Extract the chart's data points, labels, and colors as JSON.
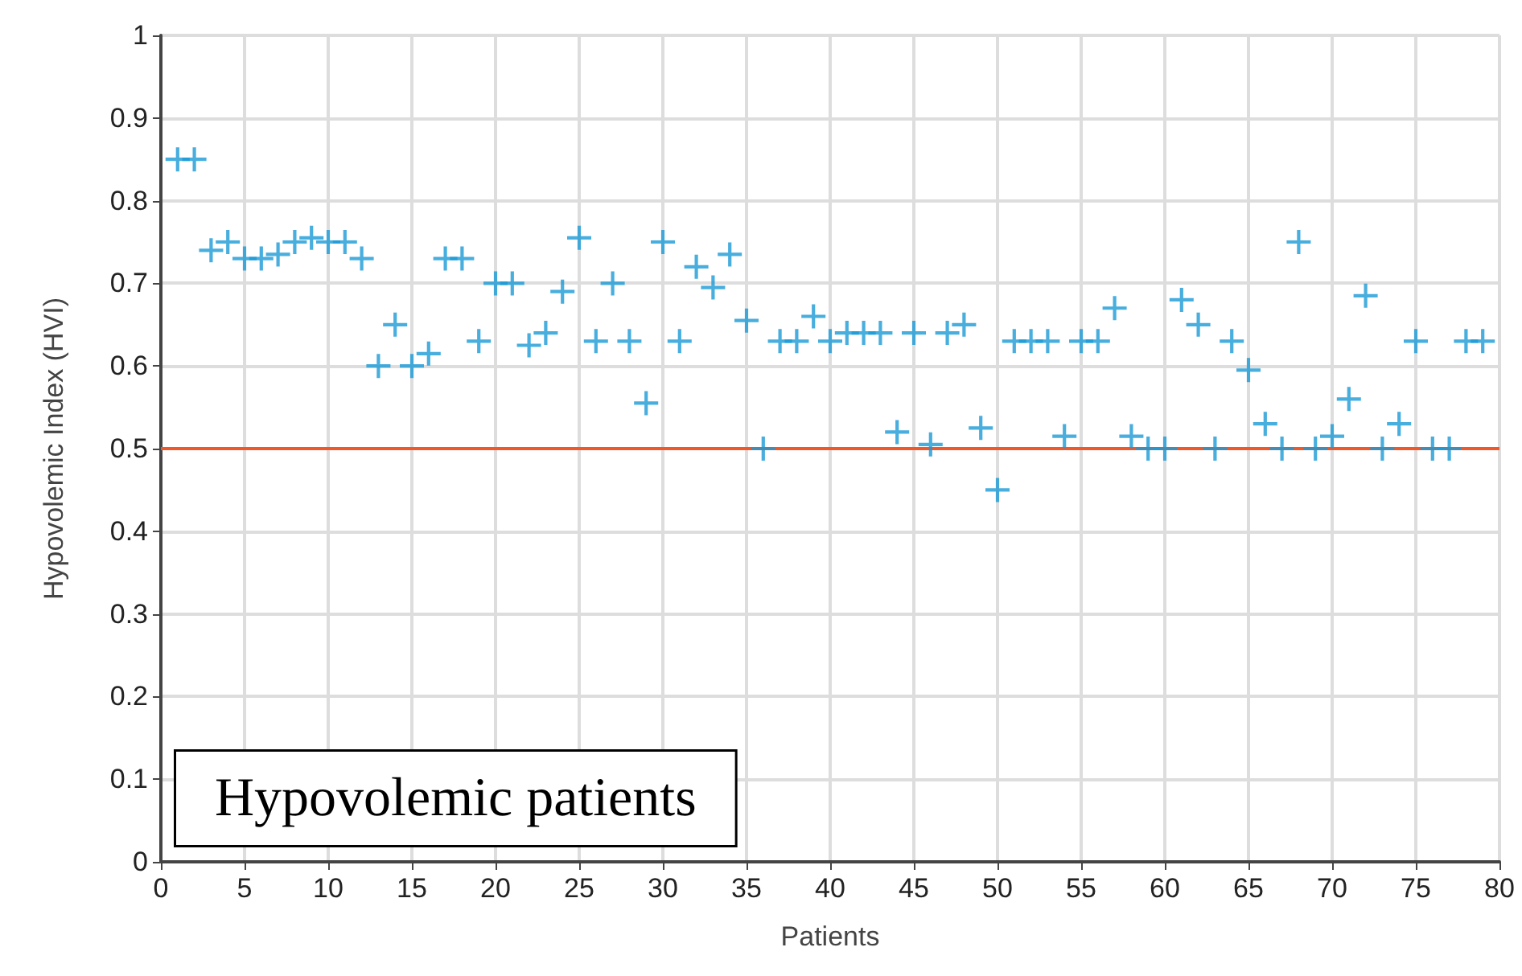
{
  "chart_data": {
    "type": "scatter",
    "xlabel": "Patients",
    "ylabel": "Hypovolemic Index (HVI)",
    "x": [
      1,
      2,
      3,
      4,
      5,
      6,
      7,
      8,
      9,
      10,
      11,
      12,
      13,
      14,
      15,
      16,
      17,
      18,
      19,
      20,
      21,
      22,
      23,
      24,
      25,
      26,
      27,
      28,
      29,
      30,
      31,
      32,
      33,
      34,
      35,
      36,
      37,
      38,
      39,
      40,
      41,
      42,
      43,
      44,
      45,
      46,
      47,
      48,
      49,
      50,
      51,
      52,
      53,
      54,
      55,
      56,
      57,
      58,
      59,
      60,
      61,
      62,
      63,
      64,
      65,
      66,
      67,
      68,
      69,
      70,
      71,
      72,
      73,
      74,
      75,
      76,
      77,
      78,
      79
    ],
    "values": [
      0.85,
      0.85,
      0.74,
      0.75,
      0.73,
      0.73,
      0.735,
      0.75,
      0.755,
      0.75,
      0.75,
      0.73,
      0.6,
      0.65,
      0.6,
      0.615,
      0.73,
      0.73,
      0.63,
      0.7,
      0.7,
      0.625,
      0.64,
      0.69,
      0.755,
      0.63,
      0.7,
      0.63,
      0.555,
      0.75,
      0.63,
      0.72,
      0.695,
      0.735,
      0.655,
      0.5,
      0.63,
      0.63,
      0.66,
      0.63,
      0.64,
      0.64,
      0.64,
      0.52,
      0.64,
      0.505,
      0.64,
      0.65,
      0.525,
      0.45,
      0.63,
      0.63,
      0.63,
      0.515,
      0.63,
      0.63,
      0.67,
      0.515,
      0.5,
      0.5,
      0.68,
      0.65,
      0.5,
      0.63,
      0.595,
      0.53,
      0.5,
      0.75,
      0.5,
      0.515,
      0.56,
      0.685,
      0.5,
      0.53,
      0.63,
      0.5,
      0.5,
      0.63,
      0.63
    ],
    "color": "#1a9ad6",
    "marker": "cross",
    "grid": true,
    "xlim": [
      0,
      80
    ],
    "xticks": [
      0,
      5,
      10,
      15,
      20,
      25,
      30,
      35,
      40,
      45,
      50,
      55,
      60,
      65,
      70,
      75,
      80
    ],
    "ylim": [
      0,
      1
    ],
    "yticks": [
      0,
      0.1,
      0.2,
      0.3,
      0.4,
      0.5,
      0.6,
      0.7,
      0.8,
      0.9,
      1
    ],
    "ref_lines": [
      {
        "axis": "y",
        "value": 0.5,
        "color": "#f0582a"
      }
    ],
    "annotations": [
      "Hypovolemic patients"
    ]
  }
}
